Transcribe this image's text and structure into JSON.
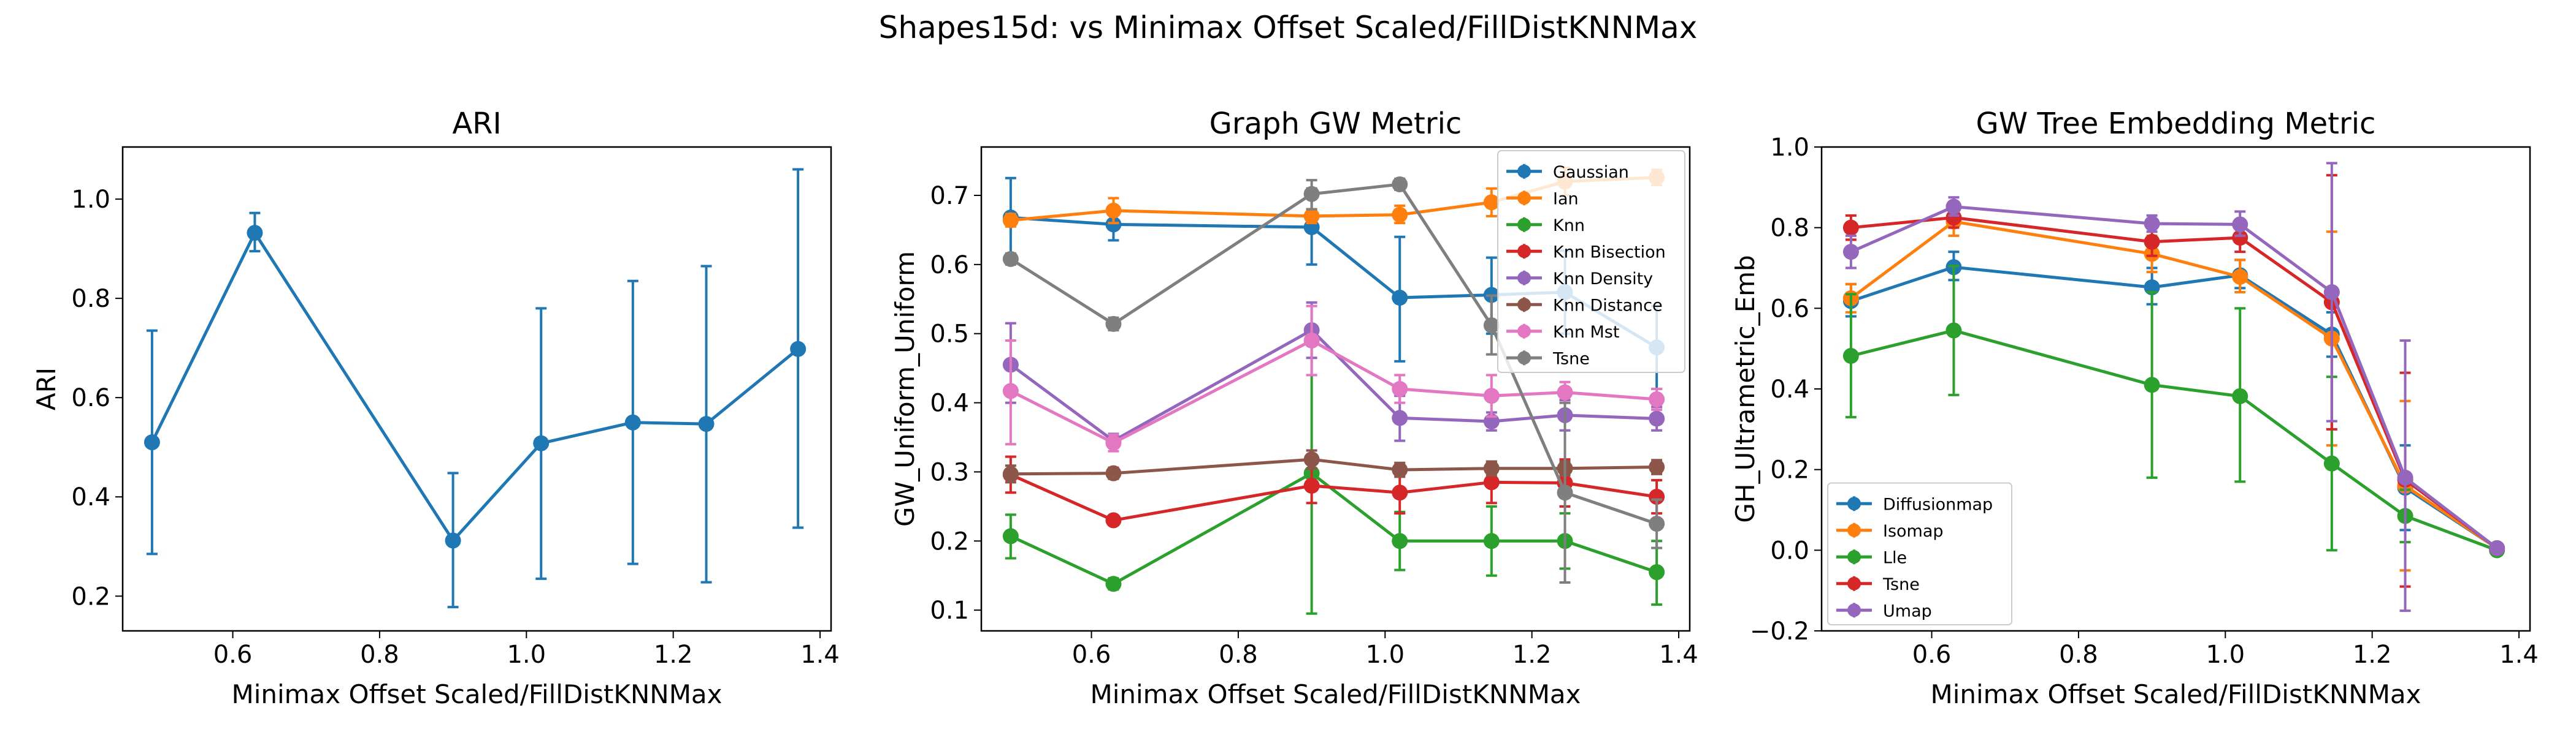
{
  "figure": {
    "suptitle": "Shapes15d: vs Minimax Offset Scaled/FillDistKNNMax"
  },
  "chart_data": [
    {
      "type": "line",
      "title": "ARI",
      "xlabel": "Minimax Offset Scaled/FillDistKNNMax",
      "ylabel": "ARI",
      "xlim": [
        0.45,
        1.415
      ],
      "ylim": [
        0.13,
        1.105
      ],
      "xticks": [
        0.6,
        0.8,
        1.0,
        1.2,
        1.4
      ],
      "xtick_labels": [
        "0.6",
        "0.8",
        "1.0",
        "1.2",
        "1.4"
      ],
      "yticks": [
        0.2,
        0.4,
        0.6,
        0.8,
        1.0
      ],
      "ytick_labels": [
        "0.2",
        "0.4",
        "0.6",
        "0.8",
        "1.0"
      ],
      "legend": null,
      "grid": false,
      "x": [
        0.49,
        0.63,
        0.9,
        1.02,
        1.145,
        1.245,
        1.37
      ],
      "series": [
        {
          "color": "#1f77b4",
          "values": [
            0.51,
            0.932,
            0.312,
            0.508,
            0.55,
            0.547,
            0.698
          ],
          "err_low": [
            0.285,
            0.895,
            0.178,
            0.235,
            0.265,
            0.228,
            0.338
          ],
          "err_high": [
            0.735,
            0.972,
            0.448,
            0.78,
            0.835,
            0.865,
            1.06
          ]
        }
      ]
    },
    {
      "type": "line",
      "title": "Graph GW Metric",
      "xlabel": "Minimax Offset Scaled/FillDistKNNMax",
      "ylabel": "GW_Uniform_Uniform",
      "xlim": [
        0.45,
        1.415
      ],
      "ylim": [
        0.07,
        0.77
      ],
      "xticks": [
        0.6,
        0.8,
        1.0,
        1.2,
        1.4
      ],
      "xtick_labels": [
        "0.6",
        "0.8",
        "1.0",
        "1.2",
        "1.4"
      ],
      "yticks": [
        0.1,
        0.2,
        0.3,
        0.4,
        0.5,
        0.6,
        0.7
      ],
      "ytick_labels": [
        "0.1",
        "0.2",
        "0.3",
        "0.4",
        "0.5",
        "0.6",
        "0.7"
      ],
      "legend": "top-right",
      "grid": false,
      "x": [
        0.49,
        0.63,
        0.9,
        1.02,
        1.145,
        1.245,
        1.37
      ],
      "series": [
        {
          "name": "Gaussian",
          "color": "#1f77b4",
          "values": [
            0.668,
            0.658,
            0.654,
            0.552,
            0.556,
            0.56,
            0.48
          ],
          "err_low": [
            0.61,
            0.635,
            0.6,
            0.46,
            0.5,
            0.5,
            0.42
          ],
          "err_high": [
            0.725,
            0.68,
            0.71,
            0.64,
            0.61,
            0.62,
            0.54
          ]
        },
        {
          "name": "Ian",
          "color": "#ff7f0e",
          "values": [
            0.664,
            0.678,
            0.67,
            0.672,
            0.69,
            0.72,
            0.726
          ],
          "err_low": [
            0.655,
            0.66,
            0.66,
            0.66,
            0.67,
            0.7,
            0.715
          ],
          "err_high": [
            0.673,
            0.696,
            0.68,
            0.685,
            0.71,
            0.74,
            0.737
          ]
        },
        {
          "name": "Knn",
          "color": "#2ca02c",
          "values": [
            0.207,
            0.138,
            0.298,
            0.2,
            0.2,
            0.2,
            0.155
          ],
          "err_low": [
            0.175,
            0.13,
            0.095,
            0.158,
            0.15,
            0.16,
            0.108
          ],
          "err_high": [
            0.238,
            0.146,
            0.5,
            0.242,
            0.25,
            0.24,
            0.2
          ]
        },
        {
          "name": "Knn Bisection",
          "color": "#d62728",
          "values": [
            0.296,
            0.23,
            0.28,
            0.27,
            0.285,
            0.284,
            0.264
          ],
          "err_low": [
            0.27,
            0.225,
            0.255,
            0.24,
            0.255,
            0.25,
            0.24
          ],
          "err_high": [
            0.322,
            0.235,
            0.305,
            0.3,
            0.315,
            0.318,
            0.288
          ]
        },
        {
          "name": "Knn Density",
          "color": "#9467bd",
          "values": [
            0.455,
            0.345,
            0.505,
            0.378,
            0.373,
            0.382,
            0.377
          ],
          "err_low": [
            0.4,
            0.335,
            0.465,
            0.345,
            0.36,
            0.36,
            0.36
          ],
          "err_high": [
            0.515,
            0.355,
            0.545,
            0.41,
            0.386,
            0.404,
            0.394
          ]
        },
        {
          "name": "Knn Distance",
          "color": "#8c564b",
          "values": [
            0.297,
            0.298,
            0.318,
            0.303,
            0.305,
            0.305,
            0.307
          ],
          "err_low": [
            0.285,
            0.29,
            0.305,
            0.293,
            0.295,
            0.295,
            0.297
          ],
          "err_high": [
            0.309,
            0.306,
            0.331,
            0.313,
            0.315,
            0.315,
            0.317
          ]
        },
        {
          "name": "Knn Mst",
          "color": "#e377c2",
          "values": [
            0.417,
            0.342,
            0.49,
            0.42,
            0.41,
            0.415,
            0.405
          ],
          "err_low": [
            0.34,
            0.33,
            0.44,
            0.4,
            0.38,
            0.4,
            0.39
          ],
          "err_high": [
            0.49,
            0.354,
            0.54,
            0.44,
            0.44,
            0.43,
            0.42
          ]
        },
        {
          "name": "Tsne",
          "color": "#7f7f7f",
          "values": [
            0.608,
            0.514,
            0.702,
            0.716,
            0.512,
            0.27,
            0.225
          ],
          "err_low": [
            0.6,
            0.505,
            0.68,
            0.708,
            0.47,
            0.14,
            0.19
          ],
          "err_high": [
            0.616,
            0.523,
            0.722,
            0.724,
            0.555,
            0.4,
            0.26
          ]
        }
      ]
    },
    {
      "type": "line",
      "title": "GW Tree Embedding Metric",
      "xlabel": "Minimax Offset Scaled/FillDistKNNMax",
      "ylabel": "GH_Ultrametric_Emb",
      "xlim": [
        0.45,
        1.415
      ],
      "ylim": [
        -0.2,
        1.0
      ],
      "xticks": [
        0.6,
        0.8,
        1.0,
        1.2,
        1.4
      ],
      "xtick_labels": [
        "0.6",
        "0.8",
        "1.0",
        "1.2",
        "1.4"
      ],
      "yticks": [
        -0.2,
        0.0,
        0.2,
        0.4,
        0.6,
        0.8,
        1.0
      ],
      "ytick_labels": [
        "−0.2",
        "0.0",
        "0.2",
        "0.4",
        "0.6",
        "0.8",
        "1.0"
      ],
      "legend": "bottom-left",
      "grid": false,
      "x": [
        0.49,
        0.63,
        0.9,
        1.02,
        1.145,
        1.245,
        1.37
      ],
      "series": [
        {
          "name": "Diffusionmap",
          "color": "#1f77b4",
          "values": [
            0.618,
            0.702,
            0.652,
            0.682,
            0.535,
            0.155,
            0.005
          ],
          "err_low": [
            0.58,
            0.67,
            0.61,
            0.65,
            0.48,
            0.05,
            -0.005
          ],
          "err_high": [
            0.66,
            0.74,
            0.7,
            0.72,
            0.59,
            0.26,
            0.015
          ]
        },
        {
          "name": "Isomap",
          "color": "#ff7f0e",
          "values": [
            0.625,
            0.815,
            0.735,
            0.678,
            0.525,
            0.16,
            0.005
          ],
          "err_low": [
            0.59,
            0.78,
            0.69,
            0.64,
            0.26,
            -0.05,
            -0.005
          ],
          "err_high": [
            0.66,
            0.85,
            0.78,
            0.72,
            0.79,
            0.37,
            0.015
          ]
        },
        {
          "name": "Lle",
          "color": "#2ca02c",
          "values": [
            0.482,
            0.545,
            0.41,
            0.382,
            0.215,
            0.085,
            0.0
          ],
          "err_low": [
            0.33,
            0.385,
            0.18,
            0.17,
            0.0,
            0.02,
            -0.01
          ],
          "err_high": [
            0.635,
            0.705,
            0.64,
            0.6,
            0.43,
            0.15,
            0.01
          ]
        },
        {
          "name": "Tsne",
          "color": "#d62728",
          "values": [
            0.8,
            0.825,
            0.765,
            0.775,
            0.615,
            0.175,
            0.005
          ],
          "err_low": [
            0.77,
            0.8,
            0.73,
            0.74,
            0.3,
            -0.09,
            -0.005
          ],
          "err_high": [
            0.83,
            0.85,
            0.8,
            0.81,
            0.93,
            0.44,
            0.015
          ]
        },
        {
          "name": "Umap",
          "color": "#9467bd",
          "values": [
            0.74,
            0.852,
            0.81,
            0.808,
            0.64,
            0.18,
            0.005
          ],
          "err_low": [
            0.7,
            0.83,
            0.79,
            0.78,
            0.32,
            -0.15,
            -0.005
          ],
          "err_high": [
            0.78,
            0.875,
            0.83,
            0.84,
            0.96,
            0.52,
            0.015
          ]
        }
      ]
    }
  ]
}
